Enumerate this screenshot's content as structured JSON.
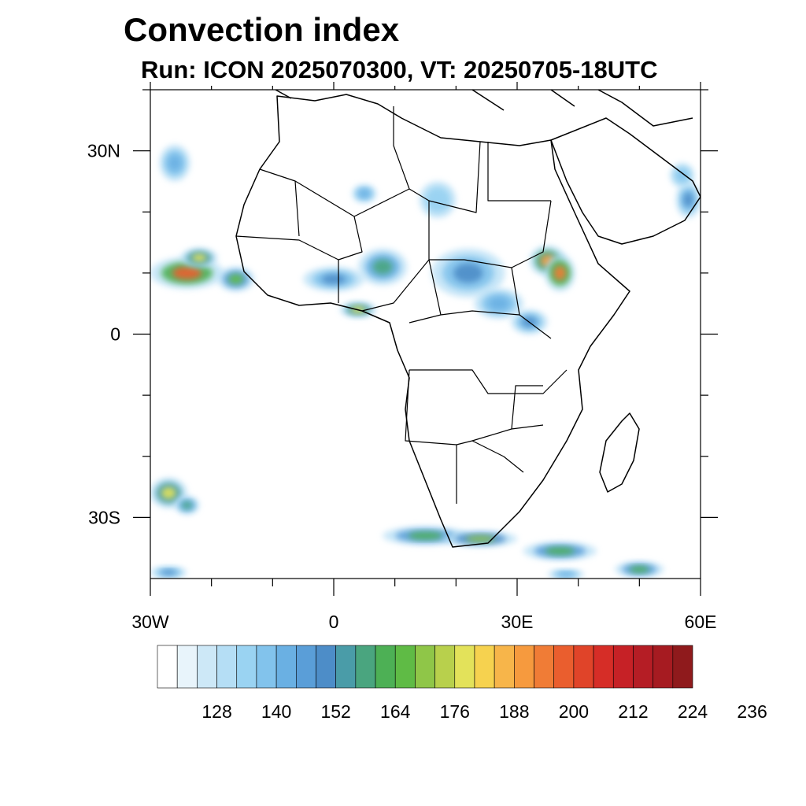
{
  "title": "Convection index",
  "subtitle": "Run: ICON 2025070300,  VT: 20250705-18UTC",
  "map": {
    "lon_range": [
      -30,
      60
    ],
    "lat_range": [
      -40,
      40
    ],
    "lon_ticks": [
      {
        "value": -30,
        "label": "30W"
      },
      {
        "value": 0,
        "label": "0"
      },
      {
        "value": 30,
        "label": "30E"
      },
      {
        "value": 60,
        "label": "60E"
      }
    ],
    "lat_ticks": [
      {
        "value": 30,
        "label": "30N"
      },
      {
        "value": 0,
        "label": "0"
      },
      {
        "value": -30,
        "label": "30S"
      }
    ]
  },
  "colorbar": {
    "colors": [
      "#ffffff",
      "#e8f4fb",
      "#cde8f7",
      "#b5def5",
      "#9ad3f2",
      "#82c3ec",
      "#6ab0e3",
      "#5a9ed8",
      "#4d8dc8",
      "#4a9ca8",
      "#4aa57f",
      "#4db055",
      "#5fbb45",
      "#8fc648",
      "#b8d04c",
      "#e3e25a",
      "#f6d24f",
      "#f7b54a",
      "#f69a3e",
      "#f07c36",
      "#ea5e2e",
      "#e04429",
      "#d62d27",
      "#c62126",
      "#b51d25",
      "#a61b21",
      "#8f1a1c"
    ],
    "labels": [
      "128",
      "140",
      "152",
      "164",
      "176",
      "188",
      "200",
      "212",
      "224",
      "236"
    ]
  },
  "convection_cells": [
    {
      "lon": -26,
      "lat": 28,
      "rx": 2.5,
      "ry": 3,
      "value": 145
    },
    {
      "lon": -24,
      "lat": 10,
      "rx": 6,
      "ry": 2.6,
      "value": 205
    },
    {
      "lon": -22,
      "lat": 12.5,
      "rx": 3,
      "ry": 1.6,
      "value": 185
    },
    {
      "lon": -16,
      "lat": 9,
      "rx": 3,
      "ry": 2,
      "value": 170
    },
    {
      "lon": -27,
      "lat": -26,
      "rx": 3,
      "ry": 2.5,
      "value": 185
    },
    {
      "lon": -24,
      "lat": -28,
      "rx": 2,
      "ry": 1.5,
      "value": 160
    },
    {
      "lon": 4,
      "lat": 4,
      "rx": 3,
      "ry": 1.3,
      "value": 185
    },
    {
      "lon": 8,
      "lat": 11,
      "rx": 4,
      "ry": 3,
      "value": 162
    },
    {
      "lon": 0,
      "lat": 9,
      "rx": 5,
      "ry": 2,
      "value": 150
    },
    {
      "lon": 22,
      "lat": 10,
      "rx": 6,
      "ry": 4,
      "value": 150
    },
    {
      "lon": 35,
      "lat": 12,
      "rx": 3,
      "ry": 2.5,
      "value": 195
    },
    {
      "lon": 37,
      "lat": 10,
      "rx": 2.5,
      "ry": 3,
      "value": 200
    },
    {
      "lon": 32,
      "lat": 2,
      "rx": 3,
      "ry": 2,
      "value": 152
    },
    {
      "lon": 27,
      "lat": 5,
      "rx": 4,
      "ry": 2.5,
      "value": 145
    },
    {
      "lon": 17,
      "lat": 22,
      "rx": 3,
      "ry": 3,
      "value": 136
    },
    {
      "lon": 5,
      "lat": 23,
      "rx": 2,
      "ry": 1.5,
      "value": 145
    },
    {
      "lon": 58,
      "lat": 22,
      "rx": 2,
      "ry": 3,
      "value": 150
    },
    {
      "lon": 57,
      "lat": 26,
      "rx": 2,
      "ry": 2,
      "value": 140
    },
    {
      "lon": 15,
      "lat": -33,
      "rx": 7,
      "ry": 1.5,
      "value": 165
    },
    {
      "lon": 24,
      "lat": -33.5,
      "rx": 6,
      "ry": 1.3,
      "value": 176
    },
    {
      "lon": 37,
      "lat": -35.5,
      "rx": 6,
      "ry": 1.5,
      "value": 165
    },
    {
      "lon": 50,
      "lat": -38.5,
      "rx": 4,
      "ry": 1.3,
      "value": 165
    },
    {
      "lon": -27,
      "lat": -39,
      "rx": 3,
      "ry": 1,
      "value": 150
    },
    {
      "lon": 38,
      "lat": -39.3,
      "rx": 3,
      "ry": 0.8,
      "value": 145
    }
  ]
}
